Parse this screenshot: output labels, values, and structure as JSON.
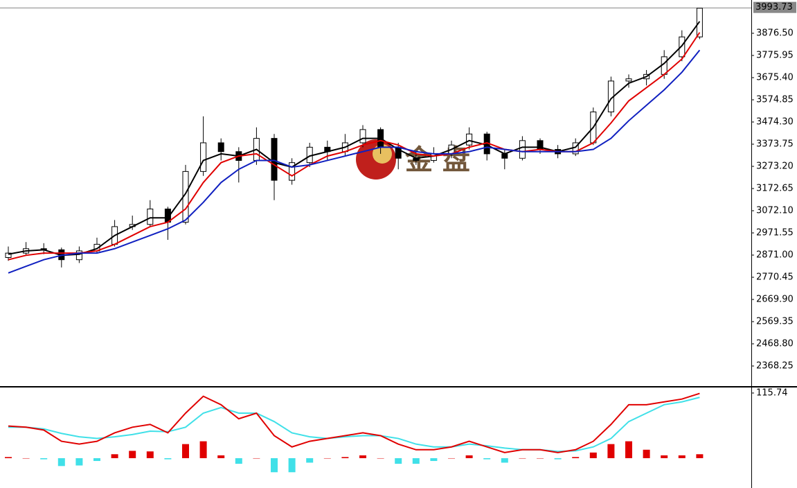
{
  "chart_data": [
    {
      "type": "candlestick",
      "watermark": "金 盘",
      "up_color": "#000000",
      "down_color": "#000000",
      "open": [
        2860,
        2880,
        2900,
        2895,
        2850,
        2890,
        2920,
        3000,
        3010,
        3080,
        3020,
        3250,
        3380,
        3340,
        3300,
        3400,
        3210,
        3290,
        3360,
        3340,
        3380,
        3440,
        3360,
        3310,
        3300,
        3330,
        3370,
        3420,
        3330,
        3310,
        3390,
        3350,
        3330,
        3380,
        3520,
        3660,
        3670,
        3690,
        3770,
        3860
      ],
      "high": [
        2910,
        2930,
        2925,
        2905,
        2910,
        2950,
        3030,
        3050,
        3120,
        3090,
        3280,
        3500,
        3400,
        3360,
        3450,
        3420,
        3310,
        3380,
        3390,
        3420,
        3460,
        3450,
        3380,
        3340,
        3360,
        3390,
        3450,
        3430,
        3350,
        3410,
        3400,
        3370,
        3400,
        3540,
        3680,
        3690,
        3710,
        3800,
        3890,
        3985
      ],
      "low": [
        2845,
        2870,
        2875,
        2815,
        2835,
        2880,
        2910,
        2985,
        3000,
        2940,
        3010,
        3230,
        3300,
        3200,
        3280,
        3120,
        3190,
        3270,
        3300,
        3320,
        3360,
        3330,
        3260,
        3280,
        3290,
        3310,
        3350,
        3300,
        3260,
        3300,
        3330,
        3310,
        3320,
        3370,
        3500,
        3630,
        3640,
        3670,
        3750,
        3850
      ],
      "close": [
        2880,
        2900,
        2895,
        2850,
        2890,
        2920,
        3000,
        3010,
        3080,
        3020,
        3250,
        3380,
        3340,
        3300,
        3400,
        3210,
        3290,
        3360,
        3340,
        3380,
        3440,
        3360,
        3310,
        3300,
        3330,
        3370,
        3420,
        3330,
        3310,
        3390,
        3350,
        3330,
        3380,
        3520,
        3660,
        3670,
        3690,
        3770,
        3860,
        3990
      ],
      "ma_lines": [
        {
          "color": "#000000",
          "values": [
            2875,
            2890,
            2895,
            2870,
            2875,
            2900,
            2960,
            3000,
            3040,
            3040,
            3150,
            3300,
            3330,
            3320,
            3350,
            3290,
            3270,
            3320,
            3340,
            3360,
            3400,
            3400,
            3350,
            3310,
            3320,
            3350,
            3390,
            3370,
            3330,
            3360,
            3360,
            3340,
            3360,
            3450,
            3580,
            3650,
            3680,
            3740,
            3820,
            3930
          ]
        },
        {
          "color": "#e00000",
          "values": [
            2850,
            2870,
            2880,
            2880,
            2880,
            2890,
            2920,
            2960,
            3000,
            3020,
            3080,
            3200,
            3290,
            3320,
            3330,
            3280,
            3230,
            3280,
            3320,
            3340,
            3370,
            3390,
            3370,
            3330,
            3320,
            3330,
            3360,
            3380,
            3350,
            3340,
            3350,
            3340,
            3340,
            3380,
            3470,
            3570,
            3630,
            3690,
            3760,
            3880
          ]
        },
        {
          "color": "#1020c0",
          "values": [
            2790,
            2820,
            2850,
            2870,
            2880,
            2880,
            2900,
            2930,
            2960,
            2990,
            3030,
            3110,
            3200,
            3260,
            3300,
            3300,
            3270,
            3280,
            3300,
            3320,
            3340,
            3360,
            3360,
            3340,
            3330,
            3330,
            3340,
            3360,
            3350,
            3340,
            3340,
            3340,
            3340,
            3350,
            3400,
            3480,
            3550,
            3620,
            3700,
            3800
          ]
        }
      ],
      "last_price": 3993.73,
      "ylim": [
        2277.1,
        3989.6
      ],
      "yticks": [
        {
          "value": 3876.5,
          "label": "3876.50"
        },
        {
          "value": 3775.95,
          "label": "3775.95"
        },
        {
          "value": 3675.4,
          "label": "3675.40"
        },
        {
          "value": 3574.85,
          "label": "3574.85"
        },
        {
          "value": 3474.3,
          "label": "3474.30"
        },
        {
          "value": 3373.75,
          "label": "3373.75"
        },
        {
          "value": 3273.2,
          "label": "3273.20"
        },
        {
          "value": 3172.65,
          "label": "3172.65"
        },
        {
          "value": 3072.1,
          "label": "3072.10"
        },
        {
          "value": 2971.55,
          "label": "2971.55"
        },
        {
          "value": 2871.0,
          "label": "2871.00"
        },
        {
          "value": 2770.45,
          "label": "2770.45"
        },
        {
          "value": 2669.9,
          "label": "2669.90"
        },
        {
          "value": 2569.35,
          "label": "2569.35"
        },
        {
          "value": 2468.8,
          "label": "2468.80"
        },
        {
          "value": 2368.25,
          "label": "2368.25"
        }
      ]
    },
    {
      "type": "macd",
      "pos_color": "#e00000",
      "neg_color": "#40e0e8",
      "histogram": [
        2,
        0,
        -2,
        -14,
        -13,
        -5,
        7,
        13,
        12,
        -2,
        25,
        30,
        5,
        -10,
        0,
        -25,
        -25,
        -8,
        0,
        2,
        5,
        0,
        -10,
        -10,
        -5,
        0,
        5,
        -2,
        -8,
        0,
        0,
        -2,
        2,
        10,
        25,
        30,
        15,
        5,
        5,
        7
      ],
      "macd": {
        "color": "#e00000",
        "values": [
          57,
          55,
          50,
          30,
          25,
          30,
          45,
          55,
          60,
          45,
          80,
          110,
          95,
          70,
          80,
          40,
          20,
          30,
          35,
          40,
          45,
          40,
          25,
          15,
          15,
          20,
          30,
          20,
          10,
          15,
          15,
          10,
          15,
          30,
          60,
          95,
          95,
          100,
          105,
          115
        ]
      },
      "signal": {
        "color": "#40e0e8",
        "values": [
          55,
          55,
          52,
          44,
          38,
          35,
          38,
          42,
          48,
          47,
          55,
          80,
          90,
          80,
          80,
          65,
          45,
          38,
          35,
          38,
          40,
          40,
          35,
          25,
          20,
          20,
          25,
          22,
          18,
          15,
          15,
          12,
          13,
          20,
          35,
          65,
          80,
          95,
          100,
          108
        ]
      },
      "ylim": [
        -53,
        123.1
      ],
      "yticks": [
        115.74
      ]
    }
  ]
}
